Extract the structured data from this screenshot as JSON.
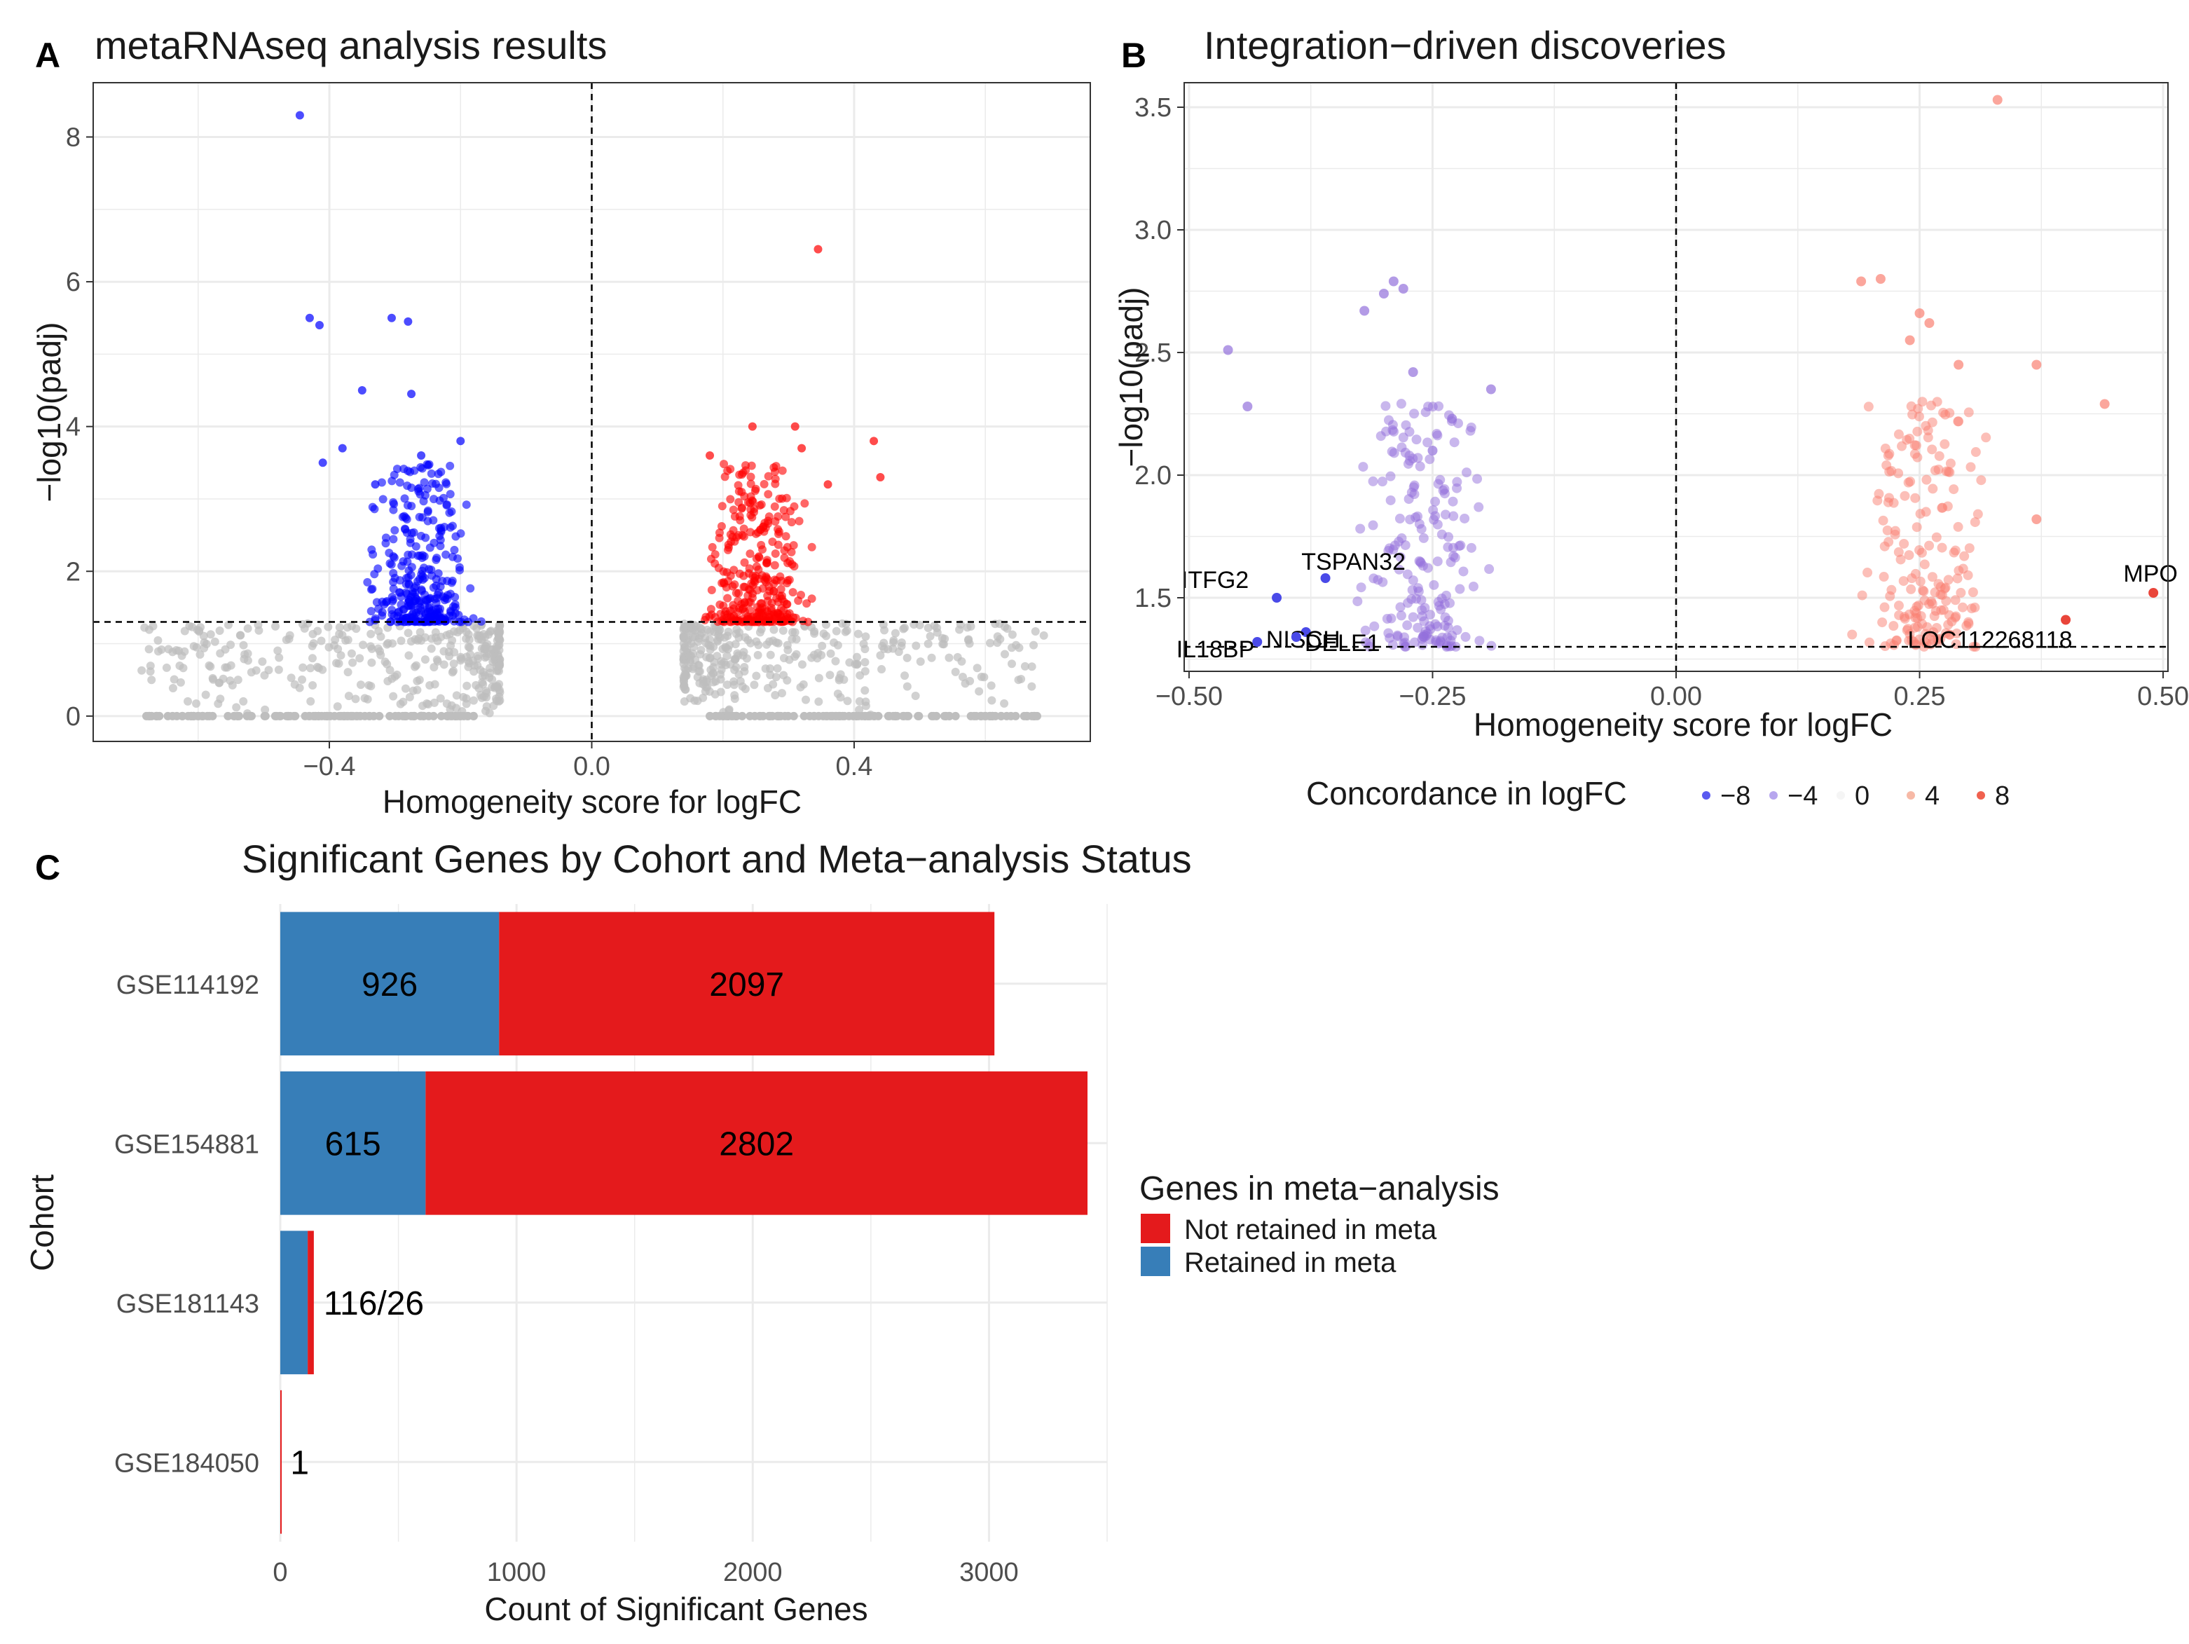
{
  "panels": {
    "a": {
      "letter": "A",
      "title": "metaRNAseq analysis results"
    },
    "b": {
      "letter": "B",
      "title": "Integration−driven discoveries"
    },
    "c": {
      "letter": "C",
      "title": "Significant Genes by Cohort and Meta−analysis Status"
    }
  },
  "colors": {
    "down": "#0000ff",
    "up": "#ff0000",
    "ns": "#bebebe",
    "grid": "#ebebeb",
    "frame": "#333333",
    "retained": "#377eb8",
    "not_retained": "#e41a1c",
    "b_down": "#9370db",
    "b_up": "#fa8072"
  },
  "chart_data": [
    {
      "id": "a",
      "type": "scatter",
      "title": "metaRNAseq analysis results",
      "xlabel": "Homogeneity score for logFC",
      "ylabel": "−log10(padj)",
      "xlim": [
        -0.76,
        0.76
      ],
      "ylim": [
        -0.35,
        8.75
      ],
      "xticks": [
        -0.4,
        0.0,
        0.4
      ],
      "xtick_labels": [
        "−0.4",
        "0.0",
        "0.4"
      ],
      "yticks": [
        0,
        2,
        4,
        6,
        8
      ],
      "ytick_labels": [
        "0",
        "2",
        "4",
        "6",
        "8"
      ],
      "hline": 1.3,
      "vline": 0,
      "grid": true,
      "series": [
        {
          "name": "down",
          "x": [
            -0.445,
            -0.43,
            -0.415,
            -0.305,
            -0.28,
            -0.275,
            -0.35,
            -0.38,
            -0.41,
            -0.33,
            -0.26,
            -0.2
          ],
          "y": [
            8.3,
            5.5,
            5.4,
            5.5,
            5.45,
            4.45,
            4.5,
            3.7,
            3.5,
            3.2,
            3.6,
            3.8
          ]
        },
        {
          "name": "up",
          "x": [
            0.345,
            0.245,
            0.31,
            0.32,
            0.43,
            0.44,
            0.18,
            0.36
          ],
          "y": [
            6.45,
            4.0,
            4.0,
            3.7,
            3.8,
            3.3,
            3.6,
            3.2
          ]
        }
      ]
    },
    {
      "id": "b",
      "type": "scatter",
      "title": "Integration−driven discoveries",
      "xlabel": "Homogeneity score for logFC",
      "ylabel": "−log10(padj)",
      "xlim": [
        -0.505,
        0.505
      ],
      "ylim": [
        1.2,
        3.6
      ],
      "xticks": [
        -0.5,
        -0.25,
        0.0,
        0.25,
        0.5
      ],
      "xtick_labels": [
        "−0.50",
        "−0.25",
        "0.00",
        "0.25",
        "0.50"
      ],
      "yticks": [
        1.5,
        2.0,
        2.5,
        3.0,
        3.5
      ],
      "ytick_labels": [
        "1.5",
        "2.0",
        "2.5",
        "3.0",
        "3.5"
      ],
      "hline": 1.3,
      "vline": 0,
      "grid": true,
      "series": [
        {
          "name": "down",
          "x": [
            -0.46,
            -0.44,
            -0.29,
            -0.28,
            -0.3,
            -0.32,
            -0.27,
            -0.19,
            -0.23,
            -0.25
          ],
          "y": [
            2.51,
            2.28,
            2.79,
            2.76,
            2.74,
            2.67,
            2.42,
            2.35,
            2.23,
            2.1
          ]
        },
        {
          "name": "up",
          "x": [
            0.33,
            0.19,
            0.21,
            0.25,
            0.26,
            0.29,
            0.37,
            0.44,
            0.37,
            0.24
          ],
          "y": [
            3.53,
            2.79,
            2.8,
            2.66,
            2.62,
            2.45,
            2.45,
            2.29,
            1.82,
            2.55
          ]
        }
      ],
      "labeled_genes": [
        {
          "name": "ITFG2",
          "x": -0.41,
          "y": 1.5
        },
        {
          "name": "TSPAN32",
          "x": -0.36,
          "y": 1.58
        },
        {
          "name": "NISCH",
          "x": -0.38,
          "y": 1.36
        },
        {
          "name": "IL18BP",
          "x": -0.43,
          "y": 1.32
        },
        {
          "name": "DELE1",
          "x": -0.39,
          "y": 1.34
        },
        {
          "name": "MPO",
          "x": 0.49,
          "y": 1.52
        },
        {
          "name": "LOC112268118",
          "x": 0.4,
          "y": 1.41
        }
      ],
      "legend": {
        "title": "Concordance in logFC",
        "entries": [
          {
            "label": "−8",
            "color": "#5a5af0"
          },
          {
            "label": "−4",
            "color": "#b7a6ee"
          },
          {
            "label": "0",
            "color": "#f5f5f5"
          },
          {
            "label": "4",
            "color": "#f7b9a6"
          },
          {
            "label": "8",
            "color": "#f0614f"
          }
        ],
        "placement": "bottom"
      }
    },
    {
      "id": "c",
      "type": "bar",
      "orientation": "horizontal",
      "stacked": true,
      "title": "Significant Genes by Cohort and Meta−analysis Status",
      "xlabel": "Count of Significant Genes",
      "ylabel": "Cohort",
      "xlim": [
        0,
        3500
      ],
      "xticks": [
        0,
        1000,
        2000,
        3000
      ],
      "xtick_labels": [
        "0",
        "1000",
        "2000",
        "3000"
      ],
      "categories": [
        "GSE114192",
        "GSE154881",
        "GSE181143",
        "GSE184050"
      ],
      "series": [
        {
          "name": "Retained in meta",
          "values": [
            926,
            615,
            116,
            0
          ]
        },
        {
          "name": "Not retained in meta",
          "values": [
            2097,
            2802,
            26,
            1
          ]
        }
      ],
      "bar_labels": [
        {
          "retained": "926",
          "not_retained": "2097"
        },
        {
          "retained": "615",
          "not_retained": "2802"
        },
        {
          "combined": "116/26"
        },
        {
          "combined": "1"
        }
      ],
      "legend": {
        "title": "Genes in meta−analysis",
        "entries": [
          "Not retained in meta",
          "Retained in meta"
        ],
        "placement": "right"
      }
    }
  ]
}
